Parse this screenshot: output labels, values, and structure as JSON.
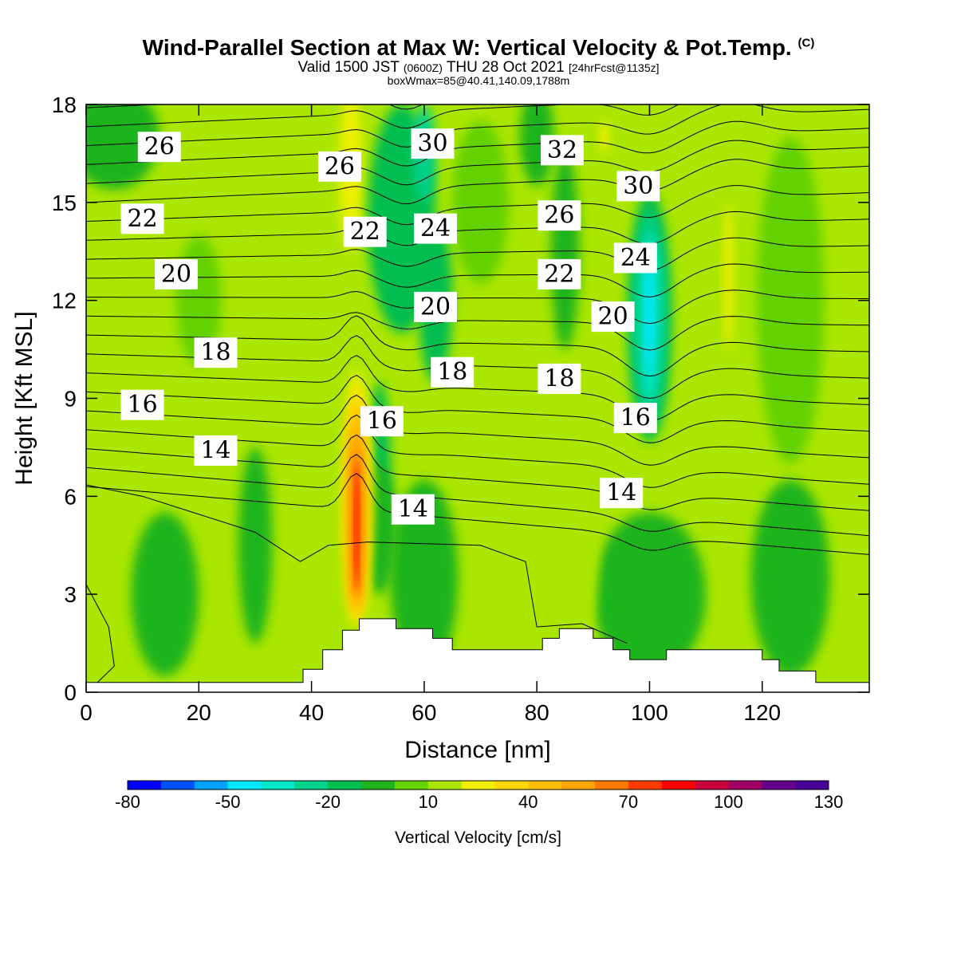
{
  "title": {
    "main": "Wind-Parallel Section at Max W: Vertical Velocity & Pot.Temp.",
    "copyright": "(C)",
    "valid_prefix": "Valid 1500 JST",
    "valid_z": "(0600Z)",
    "valid_date": "THU 28 Oct 2021",
    "fcst": "[24hrFcst@1135z]",
    "boxline": "boxWmax=85@40.41,140.09,1788m"
  },
  "chart_data": {
    "type": "heatmap",
    "xlabel": "Distance [nm]",
    "ylabel": "Height [Kft MSL]",
    "xlim": [
      0,
      139
    ],
    "ylim": [
      0,
      18
    ],
    "x_ticks": [
      0,
      20,
      40,
      60,
      80,
      100,
      120
    ],
    "y_ticks": [
      0,
      3,
      6,
      9,
      12,
      15,
      18
    ],
    "colorbar": {
      "title": "Vertical Velocity [cm/s]",
      "tick_labels": [
        "-80",
        "-50",
        "-20",
        "10",
        "40",
        "70",
        "100",
        "130"
      ],
      "levels": [
        -80,
        -70,
        -60,
        -50,
        -40,
        -30,
        -20,
        -10,
        0,
        10,
        20,
        30,
        40,
        50,
        60,
        70,
        80,
        90,
        100,
        110,
        120,
        130
      ],
      "colors": [
        "#0000ff",
        "#0050ff",
        "#00a0ff",
        "#00e6ff",
        "#00e6c8",
        "#00d28c",
        "#00be50",
        "#1eb41e",
        "#64d200",
        "#aae600",
        "#f0f000",
        "#ffd700",
        "#ffbe00",
        "#ffa500",
        "#ff7800",
        "#ff3c00",
        "#ff0000",
        "#c8003c",
        "#a00064",
        "#64008c",
        "#460096"
      ]
    },
    "w_features": [
      {
        "x": 48,
        "y_bottom": 1.5,
        "y_top": 11,
        "w_peak": 85,
        "kind": "updraft"
      },
      {
        "x": 100,
        "y_bottom": 7,
        "y_top": 16,
        "w_peak": -50,
        "kind": "downdraft"
      },
      {
        "x": 114,
        "y_bottom": 8,
        "y_top": 17.5,
        "w_peak": 30,
        "kind": "updraft"
      },
      {
        "x": 92,
        "y_bottom": 16,
        "y_top": 18,
        "w_peak": 30,
        "kind": "updraft"
      }
    ],
    "terrain": [
      [
        0,
        0.3
      ],
      [
        38.5,
        0.3
      ],
      [
        38.5,
        0.7
      ],
      [
        42,
        0.7
      ],
      [
        42,
        1.3
      ],
      [
        45.5,
        1.3
      ],
      [
        45.5,
        1.9
      ],
      [
        48.5,
        1.9
      ],
      [
        48.5,
        2.25
      ],
      [
        55,
        2.25
      ],
      [
        55,
        1.95
      ],
      [
        61.5,
        1.95
      ],
      [
        61.5,
        1.65
      ],
      [
        65,
        1.65
      ],
      [
        65,
        1.3
      ],
      [
        81,
        1.3
      ],
      [
        81,
        1.65
      ],
      [
        84,
        1.65
      ],
      [
        84,
        1.95
      ],
      [
        90,
        1.95
      ],
      [
        90,
        1.65
      ],
      [
        93.5,
        1.65
      ],
      [
        93.5,
        1.3
      ],
      [
        96.5,
        1.3
      ],
      [
        96.5,
        1.0
      ],
      [
        103,
        1.0
      ],
      [
        103,
        1.3
      ],
      [
        120,
        1.3
      ],
      [
        120,
        1.0
      ],
      [
        123,
        1.0
      ],
      [
        123,
        0.65
      ],
      [
        129.5,
        0.65
      ],
      [
        129.5,
        0.3
      ],
      [
        139,
        0.3
      ]
    ],
    "theta_contour_labels": [
      {
        "text": "26",
        "x": 13,
        "y": 16.7
      },
      {
        "text": "22",
        "x": 10,
        "y": 14.5
      },
      {
        "text": "20",
        "x": 16,
        "y": 12.8
      },
      {
        "text": "18",
        "x": 23,
        "y": 10.4
      },
      {
        "text": "16",
        "x": 10,
        "y": 8.8
      },
      {
        "text": "14",
        "x": 23,
        "y": 7.4
      },
      {
        "text": "26",
        "x": 45,
        "y": 16.1
      },
      {
        "text": "22",
        "x": 49.5,
        "y": 14.1
      },
      {
        "text": "30",
        "x": 61.5,
        "y": 16.8
      },
      {
        "text": "24",
        "x": 62,
        "y": 14.2
      },
      {
        "text": "20",
        "x": 62,
        "y": 11.8
      },
      {
        "text": "18",
        "x": 65,
        "y": 9.8
      },
      {
        "text": "16",
        "x": 52.5,
        "y": 8.3
      },
      {
        "text": "14",
        "x": 58,
        "y": 5.6
      },
      {
        "text": "32",
        "x": 84.5,
        "y": 16.6
      },
      {
        "text": "26",
        "x": 84,
        "y": 14.6
      },
      {
        "text": "22",
        "x": 84,
        "y": 12.8
      },
      {
        "text": "18",
        "x": 84,
        "y": 9.6
      },
      {
        "text": "30",
        "x": 98,
        "y": 15.5
      },
      {
        "text": "24",
        "x": 97.5,
        "y": 13.3
      },
      {
        "text": "20",
        "x": 93.5,
        "y": 11.5
      },
      {
        "text": "16",
        "x": 97.5,
        "y": 8.4
      },
      {
        "text": "14",
        "x": 95,
        "y": 6.1
      }
    ]
  }
}
